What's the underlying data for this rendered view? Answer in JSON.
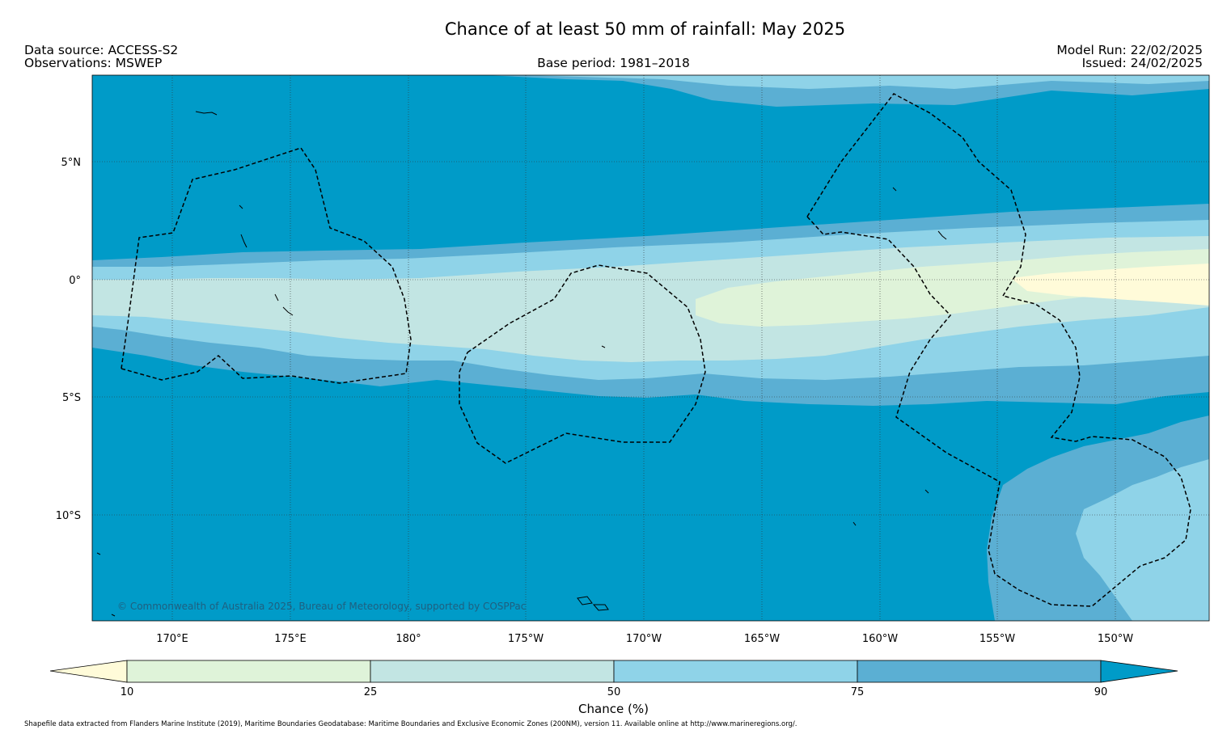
{
  "header": {
    "title": "Chance of at least 50 mm of rainfall: May 2025",
    "data_source": "Data source: ACCESS-S2",
    "observations": "Observations: MSWEP",
    "base_period": "Base period: 1981–2018",
    "model_run": "Model Run: 22/02/2025",
    "issued": "Issued: 24/02/2025"
  },
  "map": {
    "lat_ticks": [
      "5°N",
      "0°",
      "5°S",
      "10°S"
    ],
    "lon_ticks": [
      "170°E",
      "175°E",
      "180°",
      "175°W",
      "170°W",
      "165°W",
      "160°W",
      "155°W",
      "150°W"
    ],
    "copyright": "© Commonwealth of Australia 2025, Bureau of Meteorology, supported by COSPPac"
  },
  "colorbar": {
    "label": "Chance (%)",
    "ticks": [
      "10",
      "25",
      "50",
      "75",
      "90"
    ],
    "colors": {
      "below_10": "#fffbd9",
      "10_25": "#dff3d9",
      "25_50": "#c2e5e3",
      "50_75": "#8fd3e8",
      "75_90": "#5bafd3",
      "above_90": "#009bc8"
    }
  },
  "footer": {
    "shapefile_note": "Shapefile data extracted from Flanders Marine Institute (2019), Maritime Boundaries Geodatabase: Maritime Boundaries and Exclusive Economic Zones (200NM), version 11. Available online at http://www.marineregions.org/."
  }
}
